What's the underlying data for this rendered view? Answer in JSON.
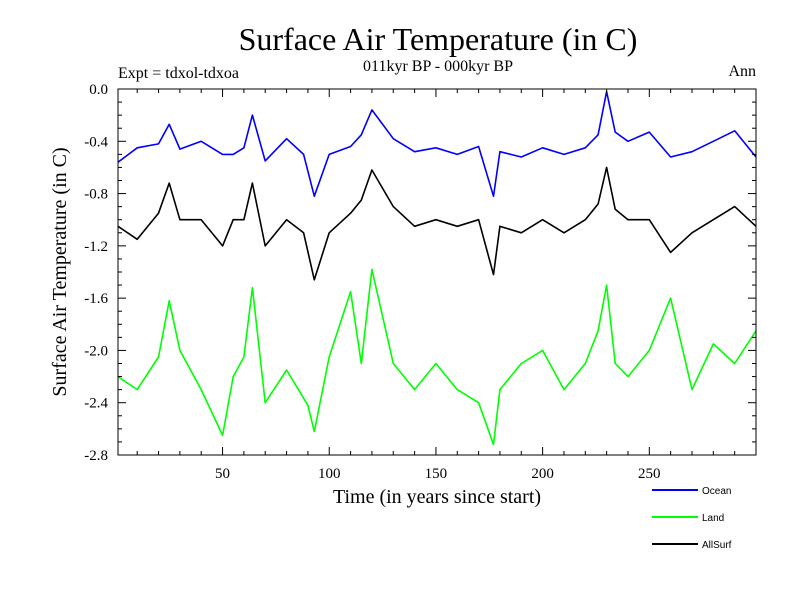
{
  "chart_data": {
    "type": "line",
    "title": "Surface Air Temperature (in C)",
    "subtitle": "011kyr BP - 000kyr BP",
    "top_left_label": "Expt = tdxol-tdxoa",
    "top_right_label": "Ann",
    "xlabel": "Time (in years since start)",
    "ylabel": "Surface Air Temperature (in C)",
    "xlim": [
      1,
      300
    ],
    "ylim": [
      -2.8,
      0.0
    ],
    "x_ticks": [
      50,
      100,
      150,
      200,
      250
    ],
    "x_tick_labels": [
      "50",
      "100",
      "150",
      "200",
      "250"
    ],
    "y_ticks": [
      0.0,
      -0.4,
      -0.8,
      -1.2,
      -1.6,
      -2.0,
      -2.4,
      -2.8
    ],
    "y_tick_labels": [
      "0.0",
      "-0.4",
      "-0.8",
      "-1.2",
      "-1.6",
      "-2.0",
      "-2.4",
      "-2.8"
    ],
    "grid": false,
    "legend_position": "bottom-right",
    "series": [
      {
        "name": "Ocean",
        "color": "#0000ff",
        "x": [
          1,
          10,
          20,
          25,
          30,
          40,
          50,
          55,
          60,
          64,
          70,
          80,
          88,
          93,
          100,
          110,
          115,
          120,
          130,
          140,
          150,
          160,
          170,
          177,
          180,
          190,
          200,
          210,
          220,
          226,
          230,
          234,
          240,
          250,
          260,
          270,
          280,
          290,
          300
        ],
        "y": [
          -0.56,
          -0.45,
          -0.42,
          -0.27,
          -0.46,
          -0.4,
          -0.5,
          -0.5,
          -0.45,
          -0.2,
          -0.55,
          -0.38,
          -0.5,
          -0.82,
          -0.5,
          -0.44,
          -0.35,
          -0.16,
          -0.38,
          -0.48,
          -0.45,
          -0.5,
          -0.44,
          -0.82,
          -0.48,
          -0.52,
          -0.45,
          -0.5,
          -0.45,
          -0.35,
          -0.02,
          -0.33,
          -0.4,
          -0.33,
          -0.52,
          -0.48,
          -0.4,
          -0.32,
          -0.52
        ]
      },
      {
        "name": "Land",
        "color": "#00ff00",
        "x": [
          1,
          10,
          20,
          25,
          30,
          40,
          50,
          55,
          60,
          64,
          70,
          80,
          90,
          93,
          100,
          110,
          115,
          120,
          130,
          140,
          150,
          160,
          170,
          177,
          180,
          190,
          200,
          210,
          220,
          226,
          230,
          234,
          240,
          250,
          260,
          270,
          280,
          290,
          300
        ],
        "y": [
          -2.2,
          -2.3,
          -2.05,
          -1.62,
          -2.0,
          -2.3,
          -2.65,
          -2.2,
          -2.05,
          -1.52,
          -2.4,
          -2.15,
          -2.42,
          -2.62,
          -2.05,
          -1.55,
          -2.1,
          -1.38,
          -2.1,
          -2.3,
          -2.1,
          -2.3,
          -2.4,
          -2.72,
          -2.3,
          -2.1,
          -2.0,
          -2.3,
          -2.1,
          -1.85,
          -1.5,
          -2.1,
          -2.2,
          -2.0,
          -1.6,
          -2.3,
          -1.95,
          -2.1,
          -1.85
        ]
      },
      {
        "name": "AllSurf",
        "color": "#000000",
        "x": [
          1,
          10,
          20,
          25,
          30,
          40,
          50,
          55,
          60,
          64,
          70,
          80,
          88,
          93,
          100,
          110,
          115,
          120,
          130,
          140,
          150,
          160,
          170,
          177,
          180,
          190,
          200,
          210,
          220,
          226,
          230,
          234,
          240,
          250,
          260,
          270,
          280,
          290,
          300
        ],
        "y": [
          -1.05,
          -1.15,
          -0.95,
          -0.72,
          -1.0,
          -1.0,
          -1.2,
          -1.0,
          -1.0,
          -0.72,
          -1.2,
          -1.0,
          -1.1,
          -1.46,
          -1.1,
          -0.95,
          -0.85,
          -0.62,
          -0.9,
          -1.05,
          -1.0,
          -1.05,
          -1.0,
          -1.42,
          -1.05,
          -1.1,
          -1.0,
          -1.1,
          -1.0,
          -0.88,
          -0.6,
          -0.92,
          -1.0,
          -1.0,
          -1.25,
          -1.1,
          -1.0,
          -0.9,
          -1.05
        ]
      }
    ]
  }
}
